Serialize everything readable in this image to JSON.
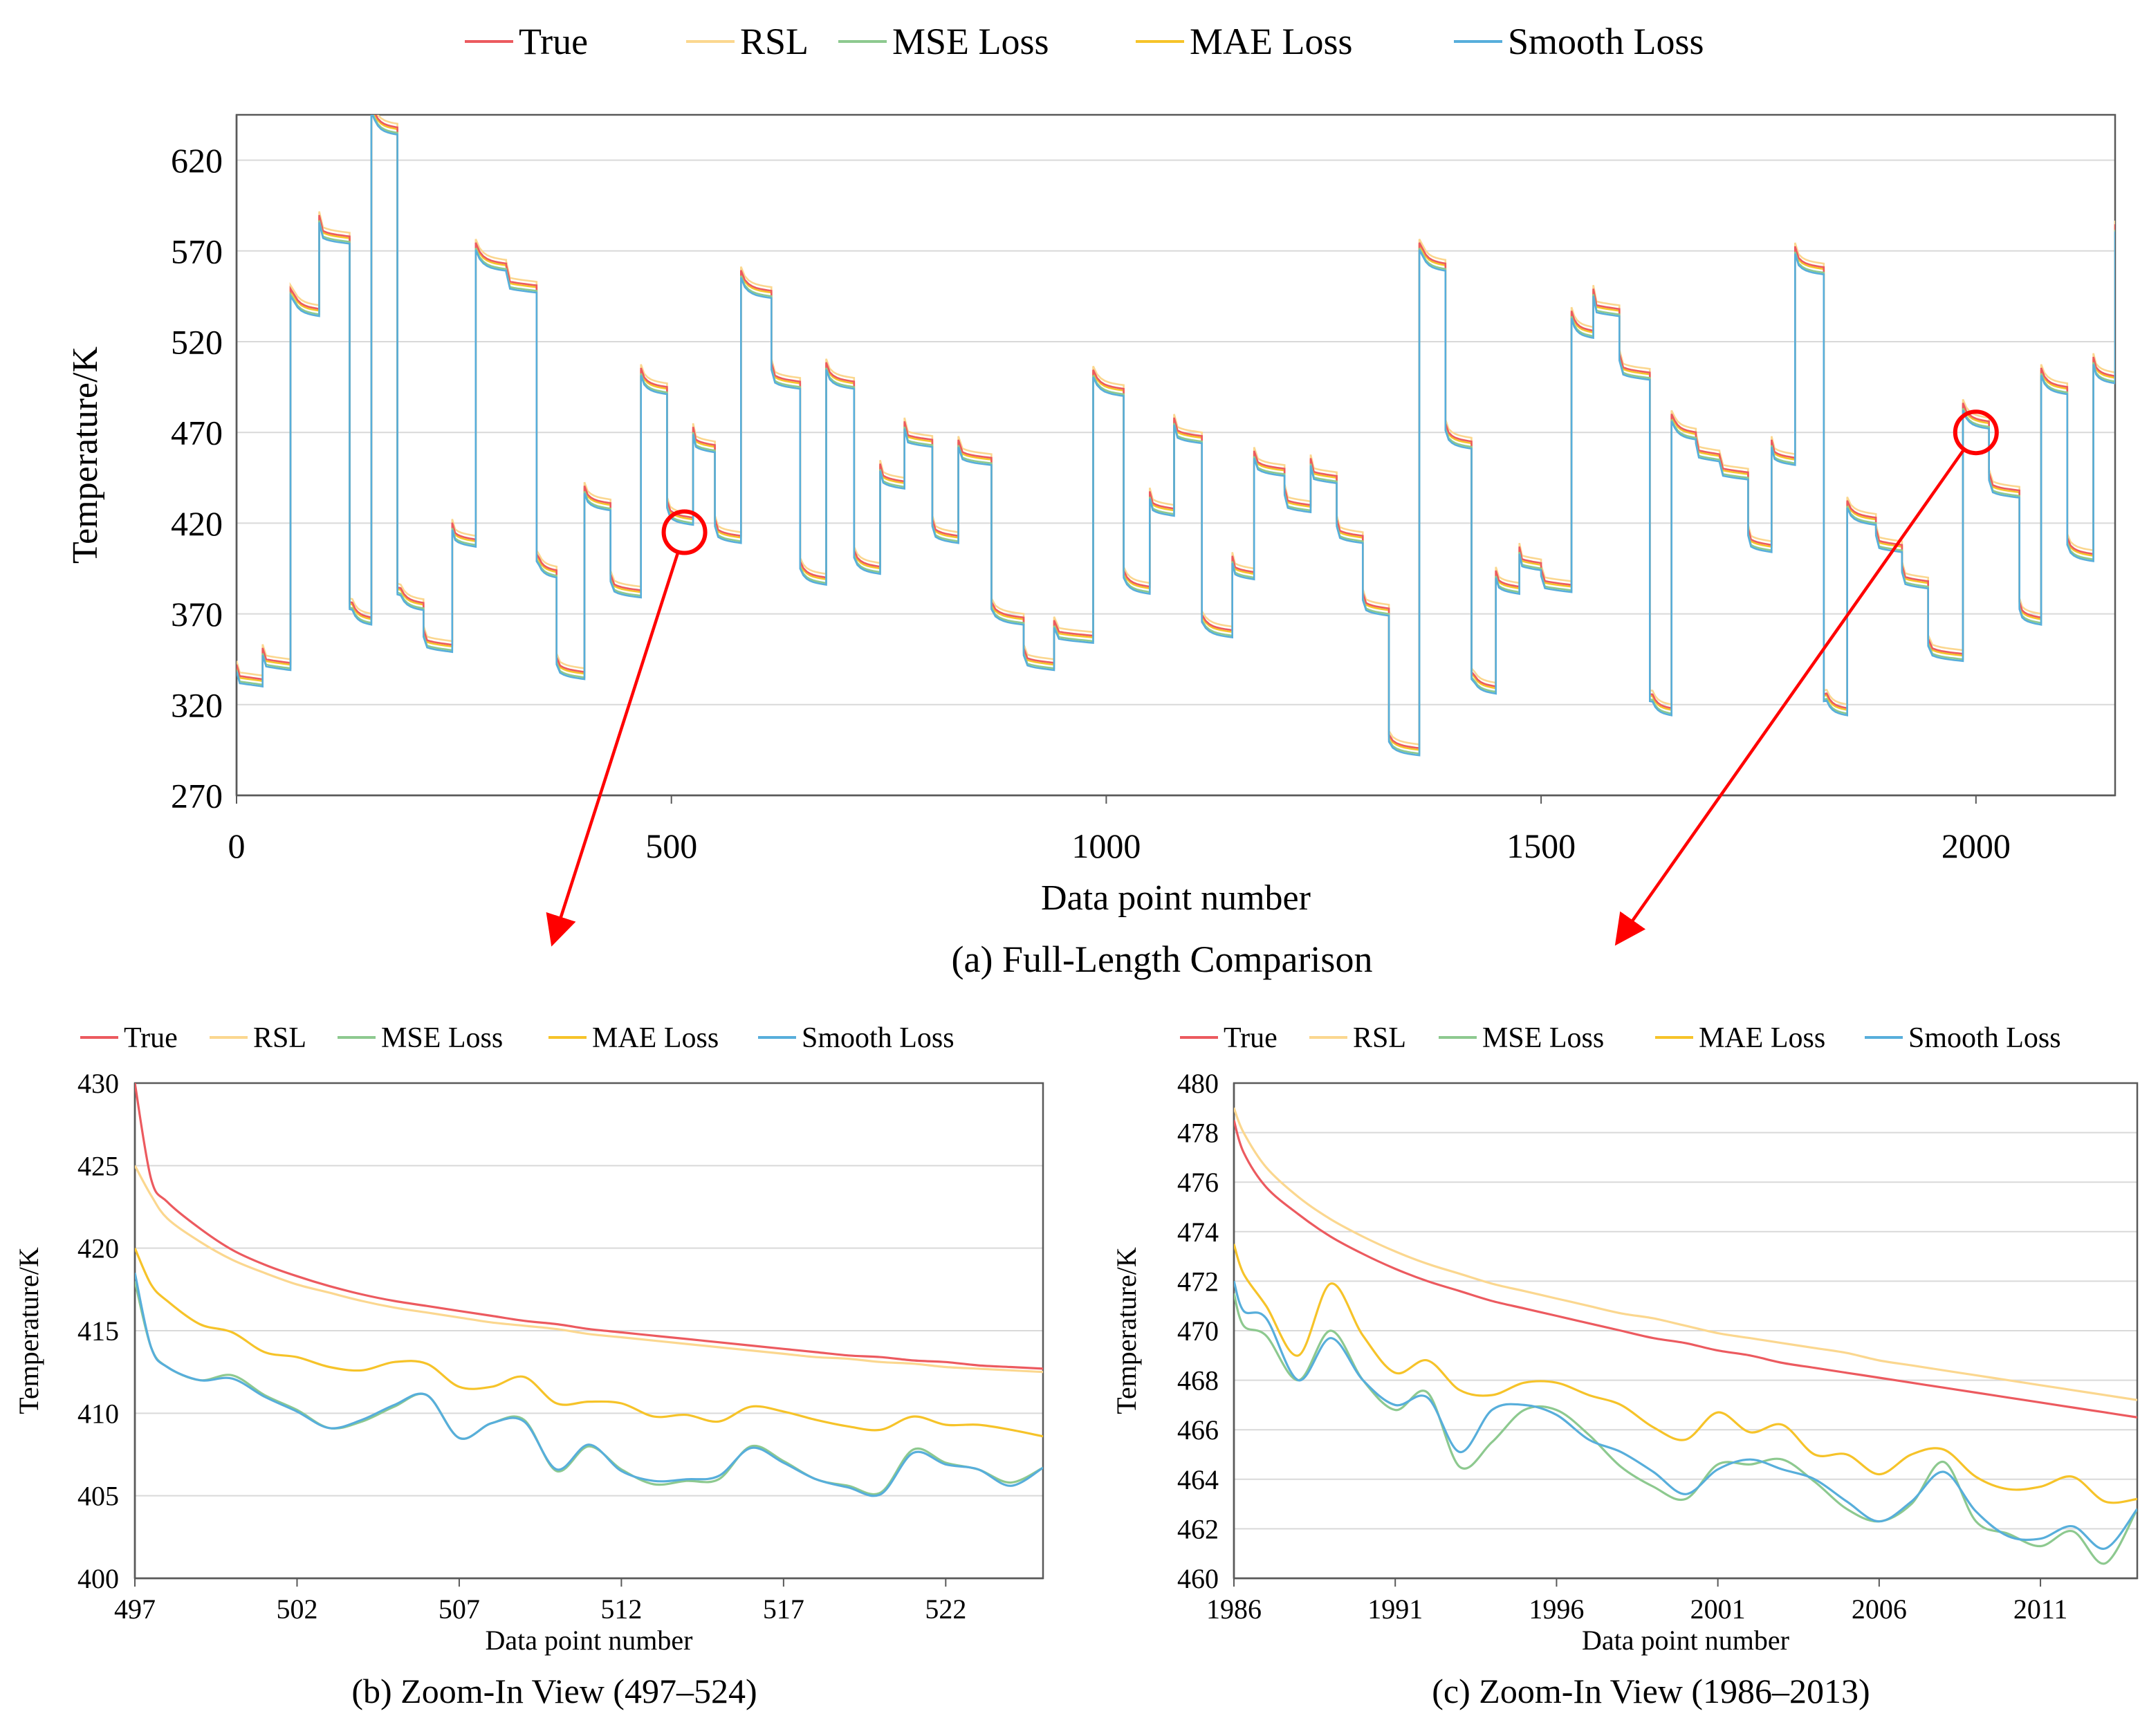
{
  "colors": {
    "True": "#ec5a5f",
    "RSL": "#fbd78f",
    "MSE Loss": "#8dc98f",
    "MAE Loss": "#f6c329",
    "Smooth Loss": "#57aedb",
    "highlight": "#ff0000",
    "grid": "#d9d9d9",
    "axis": "#595959"
  },
  "legend_labels": [
    "True",
    "RSL",
    "MSE Loss",
    "MAE Loss",
    "Smooth Loss"
  ],
  "chart_data": [
    {
      "id": "a",
      "type": "line",
      "caption": "(a) Full-Length Comparison",
      "xlabel": "Data point number",
      "ylabel": "Temperature/K",
      "xlim": [
        0,
        2160
      ],
      "ylim": [
        270,
        645
      ],
      "xticks": [
        0,
        500,
        1000,
        1500,
        2000
      ],
      "yticks": [
        270,
        320,
        370,
        420,
        470,
        520,
        570,
        620
      ],
      "grid": "horizontal",
      "legend": "top",
      "true_steps": [
        [
          0,
          336
        ],
        [
          30,
          345
        ],
        [
          62,
          540
        ],
        [
          95,
          580
        ],
        [
          130,
          370
        ],
        [
          155,
          640
        ],
        [
          185,
          378
        ],
        [
          215,
          355
        ],
        [
          248,
          413
        ],
        [
          275,
          565
        ],
        [
          310,
          553
        ],
        [
          345,
          396
        ],
        [
          368,
          340
        ],
        [
          400,
          433
        ],
        [
          430,
          385
        ],
        [
          465,
          497
        ],
        [
          495,
          425
        ],
        [
          525,
          465
        ],
        [
          550,
          415
        ],
        [
          580,
          550
        ],
        [
          615,
          500
        ],
        [
          648,
          392
        ],
        [
          678,
          500
        ],
        [
          710,
          398
        ],
        [
          740,
          445
        ],
        [
          768,
          468
        ],
        [
          800,
          415
        ],
        [
          830,
          458
        ],
        [
          868,
          370
        ],
        [
          905,
          345
        ],
        [
          940,
          360
        ],
        [
          985,
          496
        ],
        [
          1020,
          387
        ],
        [
          1050,
          430
        ],
        [
          1078,
          470
        ],
        [
          1110,
          363
        ],
        [
          1145,
          395
        ],
        [
          1170,
          452
        ],
        [
          1205,
          432
        ],
        [
          1235,
          448
        ],
        [
          1265,
          415
        ],
        [
          1295,
          375
        ],
        [
          1325,
          298
        ],
        [
          1360,
          565
        ],
        [
          1390,
          467
        ],
        [
          1420,
          332
        ],
        [
          1448,
          387
        ],
        [
          1475,
          400
        ],
        [
          1500,
          388
        ],
        [
          1535,
          528
        ],
        [
          1560,
          540
        ],
        [
          1590,
          505
        ],
        [
          1625,
          320
        ],
        [
          1650,
          472
        ],
        [
          1678,
          460
        ],
        [
          1705,
          450
        ],
        [
          1738,
          410
        ],
        [
          1765,
          458
        ],
        [
          1792,
          563
        ],
        [
          1825,
          320
        ],
        [
          1852,
          425
        ],
        [
          1885,
          410
        ],
        [
          1915,
          390
        ],
        [
          1945,
          350
        ],
        [
          1985,
          478
        ],
        [
          2015,
          440
        ],
        [
          2050,
          370
        ],
        [
          2075,
          497
        ],
        [
          2105,
          405
        ],
        [
          2135,
          503
        ],
        [
          2160,
          575
        ]
      ],
      "series_offsets": {
        "True": 0,
        "RSL": 2,
        "MSE Loss": -3,
        "MAE Loss": -1,
        "Smooth Loss": -4
      }
    },
    {
      "id": "b",
      "type": "line",
      "caption": "(b) Zoom-In View (497–524)",
      "xlabel": "Data point number",
      "ylabel": "Temperature/K",
      "xlim": [
        497,
        525
      ],
      "ylim": [
        400,
        430
      ],
      "xticks": [
        497,
        502,
        507,
        512,
        517,
        522
      ],
      "yticks": [
        400,
        405,
        410,
        415,
        420,
        425,
        430
      ],
      "grid": "horizontal",
      "legend": "top",
      "x": [
        497,
        497.5,
        498,
        499,
        500,
        501,
        502,
        503,
        504,
        505,
        506,
        507,
        508,
        509,
        510,
        511,
        512,
        513,
        514,
        515,
        516,
        517,
        518,
        519,
        520,
        521,
        522,
        523,
        524,
        525
      ],
      "series": [
        {
          "name": "True",
          "values": [
            430,
            424.2,
            422.8,
            421.2,
            419.9,
            419.0,
            418.3,
            417.7,
            417.2,
            416.8,
            416.5,
            416.2,
            415.9,
            415.6,
            415.4,
            415.1,
            414.9,
            414.7,
            414.5,
            414.3,
            414.1,
            413.9,
            413.7,
            413.5,
            413.4,
            413.2,
            413.1,
            412.9,
            412.8,
            412.7
          ]
        },
        {
          "name": "RSL",
          "values": [
            425,
            423.2,
            421.8,
            420.4,
            419.3,
            418.5,
            417.8,
            417.3,
            416.8,
            416.4,
            416.1,
            415.8,
            415.5,
            415.3,
            415.1,
            414.8,
            414.6,
            414.4,
            414.2,
            414.0,
            413.8,
            413.6,
            413.4,
            413.3,
            413.1,
            413.0,
            412.8,
            412.7,
            412.6,
            412.5
          ]
        },
        {
          "name": "MSE Loss",
          "values": [
            418,
            414.0,
            412.8,
            412.0,
            412.3,
            411.1,
            410.2,
            409.1,
            409.5,
            410.4,
            411.1,
            408.5,
            409.4,
            409.6,
            406.5,
            408.0,
            406.6,
            405.7,
            405.9,
            406.0,
            408.0,
            407.1,
            406.0,
            405.6,
            405.2,
            407.8,
            407.0,
            406.6,
            405.8,
            406.7
          ]
        },
        {
          "name": "MAE Loss",
          "values": [
            420,
            417.8,
            416.8,
            415.4,
            414.9,
            413.7,
            413.4,
            412.8,
            412.6,
            413.1,
            413.0,
            411.6,
            411.6,
            412.2,
            410.6,
            410.7,
            410.6,
            409.8,
            409.9,
            409.5,
            410.4,
            410.1,
            409.6,
            409.2,
            409.0,
            409.8,
            409.3,
            409.3,
            409.0,
            408.6
          ]
        },
        {
          "name": "Smooth Loss",
          "values": [
            418.5,
            414.0,
            412.8,
            412.0,
            412.1,
            411.0,
            410.1,
            409.1,
            409.6,
            410.5,
            411.1,
            408.5,
            409.4,
            409.5,
            406.6,
            408.1,
            406.5,
            405.9,
            406.0,
            406.2,
            407.9,
            407.0,
            406.0,
            405.5,
            405.1,
            407.6,
            406.9,
            406.6,
            405.6,
            406.7
          ]
        }
      ]
    },
    {
      "id": "c",
      "type": "line",
      "caption": "(c) Zoom-In View (1986–2013)",
      "xlabel": "Data point number",
      "ylabel": "Temperature/K",
      "xlim": [
        1986,
        2014
      ],
      "ylim": [
        460,
        480
      ],
      "xticks": [
        1986,
        1991,
        1996,
        2001,
        2006,
        2011
      ],
      "yticks": [
        460,
        462,
        464,
        466,
        468,
        470,
        472,
        474,
        476,
        478,
        480
      ],
      "grid": "horizontal",
      "legend": "top",
      "x": [
        1986,
        1986.3,
        1987,
        1988,
        1989,
        1990,
        1991,
        1992,
        1993,
        1994,
        1995,
        1996,
        1997,
        1998,
        1999,
        2000,
        2001,
        2002,
        2003,
        2004,
        2005,
        2006,
        2007,
        2008,
        2009,
        2010,
        2011,
        2012,
        2013,
        2014
      ],
      "series": [
        {
          "name": "True",
          "values": [
            478.5,
            477.2,
            475.8,
            474.7,
            473.8,
            473.1,
            472.5,
            472.0,
            471.6,
            471.2,
            470.9,
            470.6,
            470.3,
            470.0,
            469.7,
            469.5,
            469.2,
            469.0,
            468.7,
            468.5,
            468.3,
            468.1,
            467.9,
            467.7,
            467.5,
            467.3,
            467.1,
            466.9,
            466.7,
            466.5
          ]
        },
        {
          "name": "RSL",
          "values": [
            479.0,
            478.0,
            476.6,
            475.4,
            474.5,
            473.8,
            473.2,
            472.7,
            472.3,
            471.9,
            471.6,
            471.3,
            471.0,
            470.7,
            470.5,
            470.2,
            469.9,
            469.7,
            469.5,
            469.3,
            469.1,
            468.8,
            468.6,
            468.4,
            468.2,
            468.0,
            467.8,
            467.6,
            467.4,
            467.2
          ]
        },
        {
          "name": "MSE Loss",
          "values": [
            471.5,
            470.2,
            469.8,
            468.0,
            470.0,
            468.0,
            466.8,
            467.5,
            464.5,
            465.5,
            466.8,
            466.8,
            465.8,
            464.5,
            463.7,
            463.2,
            464.6,
            464.6,
            464.8,
            463.9,
            462.8,
            462.3,
            463.0,
            464.7,
            462.3,
            461.8,
            461.3,
            461.9,
            460.6,
            462.8
          ]
        },
        {
          "name": "MAE Loss",
          "values": [
            473.5,
            472.3,
            471.0,
            469.0,
            471.9,
            469.8,
            468.3,
            468.8,
            467.6,
            467.4,
            467.9,
            467.9,
            467.4,
            467.0,
            466.1,
            465.6,
            466.7,
            465.9,
            466.2,
            465.0,
            465.0,
            464.2,
            465.0,
            465.2,
            464.1,
            463.6,
            463.7,
            464.1,
            463.1,
            463.2
          ]
        },
        {
          "name": "Smooth Loss",
          "values": [
            472.0,
            470.8,
            470.5,
            468.0,
            469.7,
            468.0,
            467.0,
            467.3,
            465.1,
            466.8,
            467.0,
            466.6,
            465.6,
            465.1,
            464.3,
            463.4,
            464.4,
            464.8,
            464.4,
            464.0,
            463.1,
            462.3,
            463.1,
            464.3,
            462.7,
            461.7,
            461.6,
            462.1,
            461.2,
            462.8
          ]
        }
      ]
    }
  ],
  "annotations": [
    {
      "panel": "a",
      "circle_at": [
        515,
        415
      ],
      "arrow_to_panel": "b"
    },
    {
      "panel": "a",
      "circle_at": [
        2000,
        470
      ],
      "arrow_to_panel": "c"
    }
  ]
}
